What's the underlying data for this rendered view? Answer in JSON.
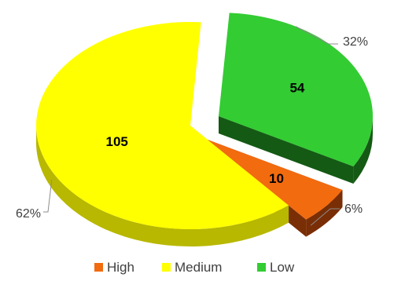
{
  "chart_data": {
    "type": "pie",
    "style": "3d-exploded",
    "categories": [
      "High",
      "Medium",
      "Low"
    ],
    "values": [
      10,
      105,
      54
    ],
    "percent_labels": [
      "6%",
      "62%",
      "32%"
    ],
    "value_labels": [
      "10",
      "105",
      "54"
    ],
    "colors": {
      "High": "#f26b0f",
      "Medium": "#ffff00",
      "Low": "#33cc33"
    },
    "side_colors": {
      "High": "#7a2e05",
      "Medium": "#b8b800",
      "Low": "#145a14"
    },
    "legend": {
      "position": "bottom",
      "entries": [
        "High",
        "Medium",
        "Low"
      ]
    }
  }
}
